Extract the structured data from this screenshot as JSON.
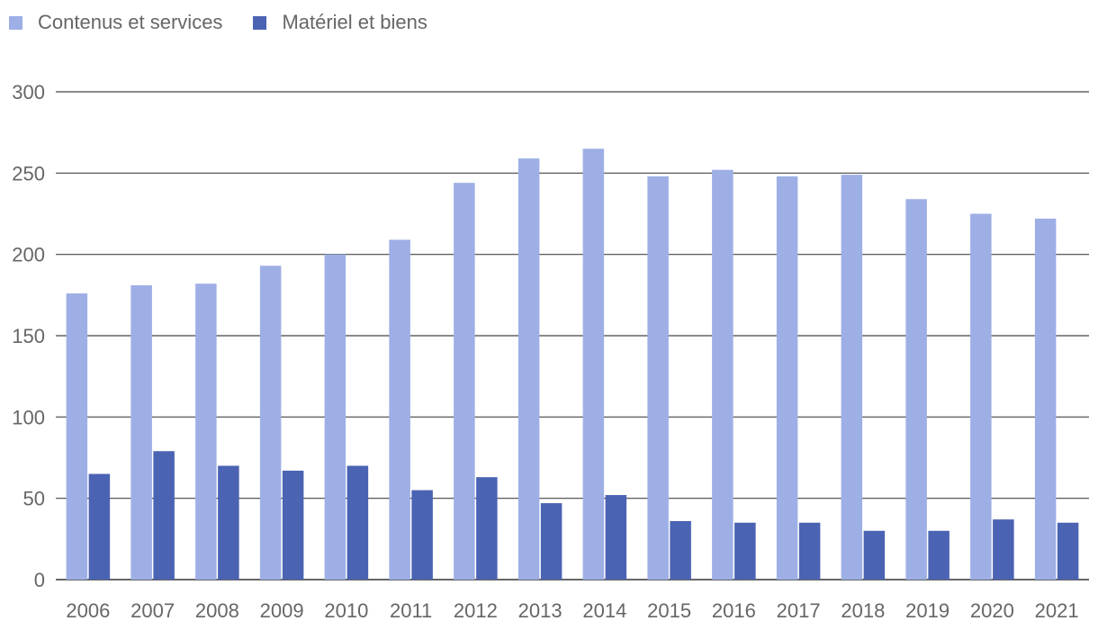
{
  "colors": {
    "contenus": "#9dafe5",
    "materiel": "#4b63b3",
    "gridline": "#444444",
    "text": "#666666"
  },
  "legend": {
    "items": [
      {
        "label": "Contenus et services",
        "color": "#9dafe5"
      },
      {
        "label": "Matériel et biens",
        "color": "#4b63b3"
      }
    ],
    "position": "top-left"
  },
  "chart_data": {
    "type": "bar",
    "title": "",
    "xlabel": "",
    "ylabel": "",
    "ylim": [
      0,
      300
    ],
    "yticks": [
      0,
      50,
      100,
      150,
      200,
      250,
      300
    ],
    "grid": true,
    "legend_position": "top-left",
    "categories": [
      "2006",
      "2007",
      "2008",
      "2009",
      "2010",
      "2011",
      "2012",
      "2013",
      "2014",
      "2015",
      "2016",
      "2017",
      "2018",
      "2019",
      "2020",
      "2021"
    ],
    "series": [
      {
        "name": "Contenus et services",
        "color": "#9dafe5",
        "values": [
          176,
          181,
          182,
          193,
          200,
          209,
          244,
          259,
          265,
          248,
          252,
          248,
          249,
          234,
          225,
          222
        ]
      },
      {
        "name": "Matériel et biens",
        "color": "#4b63b3",
        "values": [
          65,
          79,
          70,
          67,
          70,
          55,
          63,
          47,
          52,
          36,
          35,
          35,
          30,
          30,
          37,
          35
        ]
      }
    ]
  }
}
